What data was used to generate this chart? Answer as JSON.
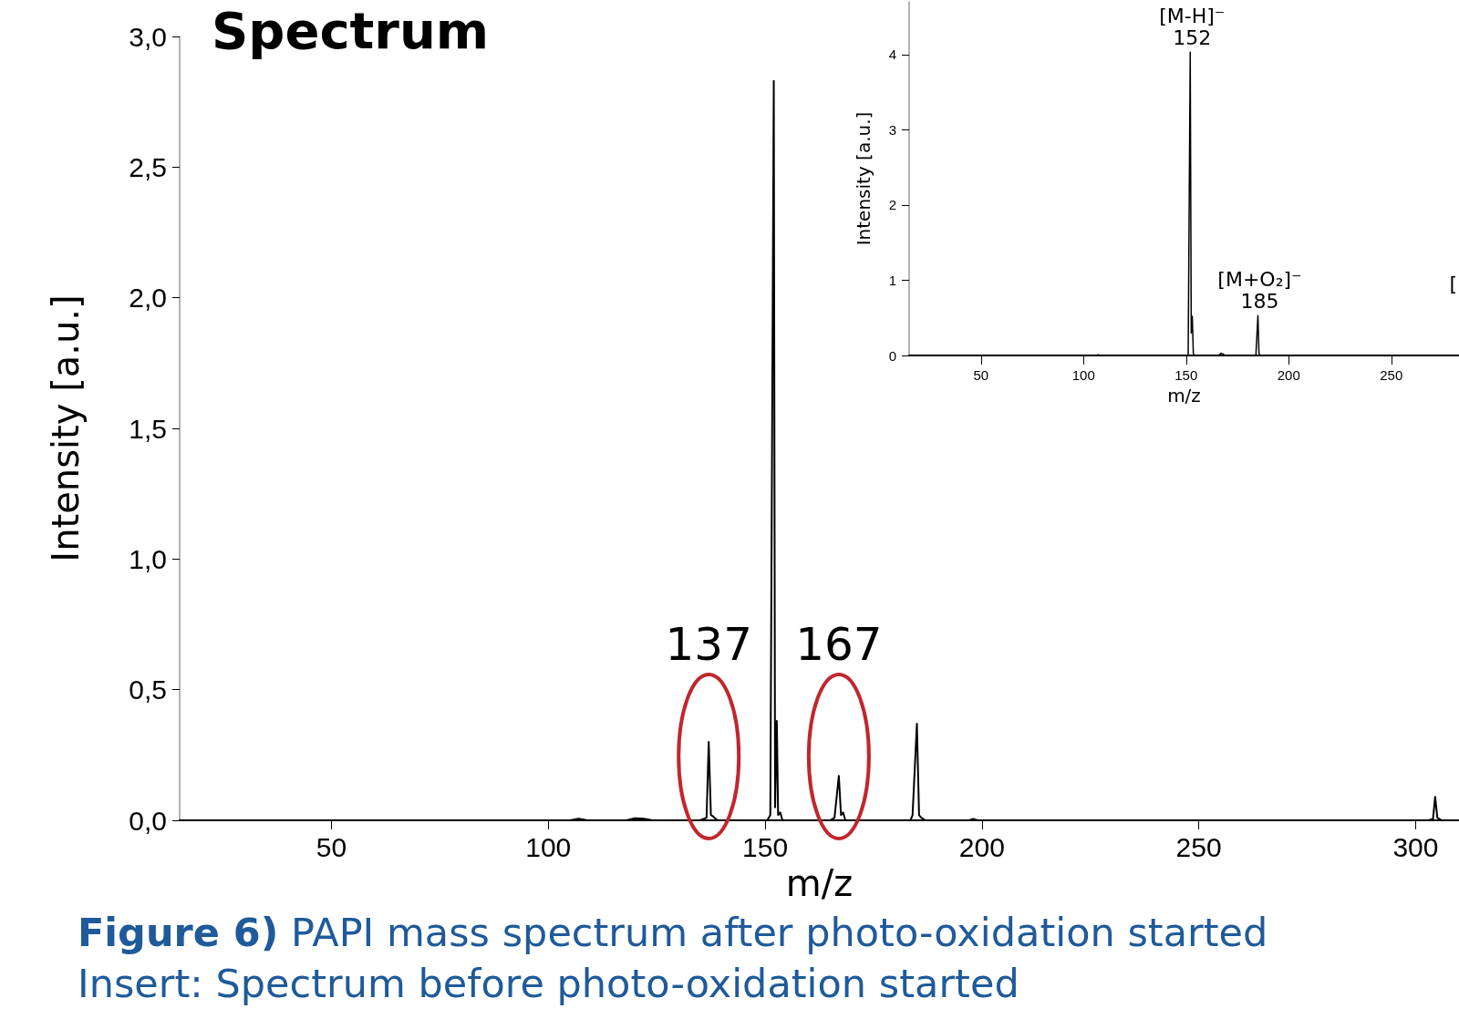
{
  "chart_data": [
    {
      "type": "line",
      "title": "Spectrum",
      "xlabel": "m/z",
      "ylabel": "Intensity [a.u.]",
      "xlim": [
        15,
        310
      ],
      "xticks": [
        50,
        100,
        150,
        200,
        250,
        300
      ],
      "ylim": [
        0,
        3
      ],
      "yticks": [
        {
          "value": 0,
          "label": "0,0"
        },
        {
          "value": 0.5,
          "label": "0,5"
        },
        {
          "value": 1,
          "label": "1,0"
        },
        {
          "value": 1.5,
          "label": "1,5"
        },
        {
          "value": 2,
          "label": "2,0"
        },
        {
          "value": 2.5,
          "label": "2,5"
        },
        {
          "value": 3,
          "label": "3,0"
        }
      ],
      "marker": "none",
      "line_style": "solid",
      "series": [
        {
          "color": "#000000",
          "x": [
            15,
            105,
            107,
            109,
            118,
            120,
            122,
            124,
            135,
            136.5,
            137,
            137.5,
            138,
            139,
            150.5,
            151.2,
            152,
            152.3,
            152.7,
            153,
            153.5,
            154,
            165,
            166,
            167,
            167.5,
            168,
            168.5,
            183.5,
            184,
            185,
            185.5,
            186,
            187,
            197,
            198,
            199,
            303,
            304,
            304.5,
            305,
            306,
            310
          ],
          "values": [
            0,
            0,
            0.006,
            0,
            0,
            0.008,
            0.006,
            0,
            0,
            0.01,
            0.3,
            0.02,
            0.015,
            0,
            0,
            0.02,
            2.83,
            0.05,
            0.38,
            0.02,
            0.03,
            0,
            0,
            0.01,
            0.17,
            0.02,
            0.03,
            0,
            0,
            0.02,
            0.37,
            0.02,
            0.01,
            0,
            0,
            0.005,
            0,
            0,
            0.005,
            0.09,
            0.01,
            0,
            0
          ]
        }
      ],
      "annotations": [
        {
          "text": "137",
          "x": 137,
          "y": 0.3
        },
        {
          "text": "167",
          "x": 167,
          "y": 0.17
        },
        "Figure 6)",
        "PAPI mass spectrum after photo-oxidation started",
        "Insert: Spectrum before photo-oxidation started"
      ]
    },
    {
      "type": "line",
      "xlabel": "m/z",
      "ylabel": "Intensity [a.u.]",
      "xlim": [
        15,
        283
      ],
      "xticks": [
        50,
        100,
        150,
        200,
        250
      ],
      "ylim": [
        0,
        4.7
      ],
      "yticks": [
        0,
        1,
        2,
        3,
        4
      ],
      "marker": "none",
      "line_style": "solid",
      "series": [
        {
          "color": "#000000",
          "x": [
            15,
            106,
            107,
            108,
            151,
            152,
            152.5,
            153,
            153.5,
            154,
            166,
            167,
            168,
            169,
            184,
            185,
            185.5,
            186,
            283
          ],
          "values": [
            0,
            0,
            0.01,
            0,
            0,
            4.03,
            0.3,
            0.52,
            0.03,
            0,
            0,
            0.03,
            0.02,
            0,
            0,
            0.53,
            0.03,
            0,
            0
          ]
        }
      ],
      "annotations": [
        {
          "text": "[M-H]⁻\n152",
          "x": 152,
          "y": 4.03
        },
        {
          "text": "[M+O₂]⁻\n185",
          "x": 185,
          "y": 0.53
        },
        "["
      ]
    }
  ]
}
